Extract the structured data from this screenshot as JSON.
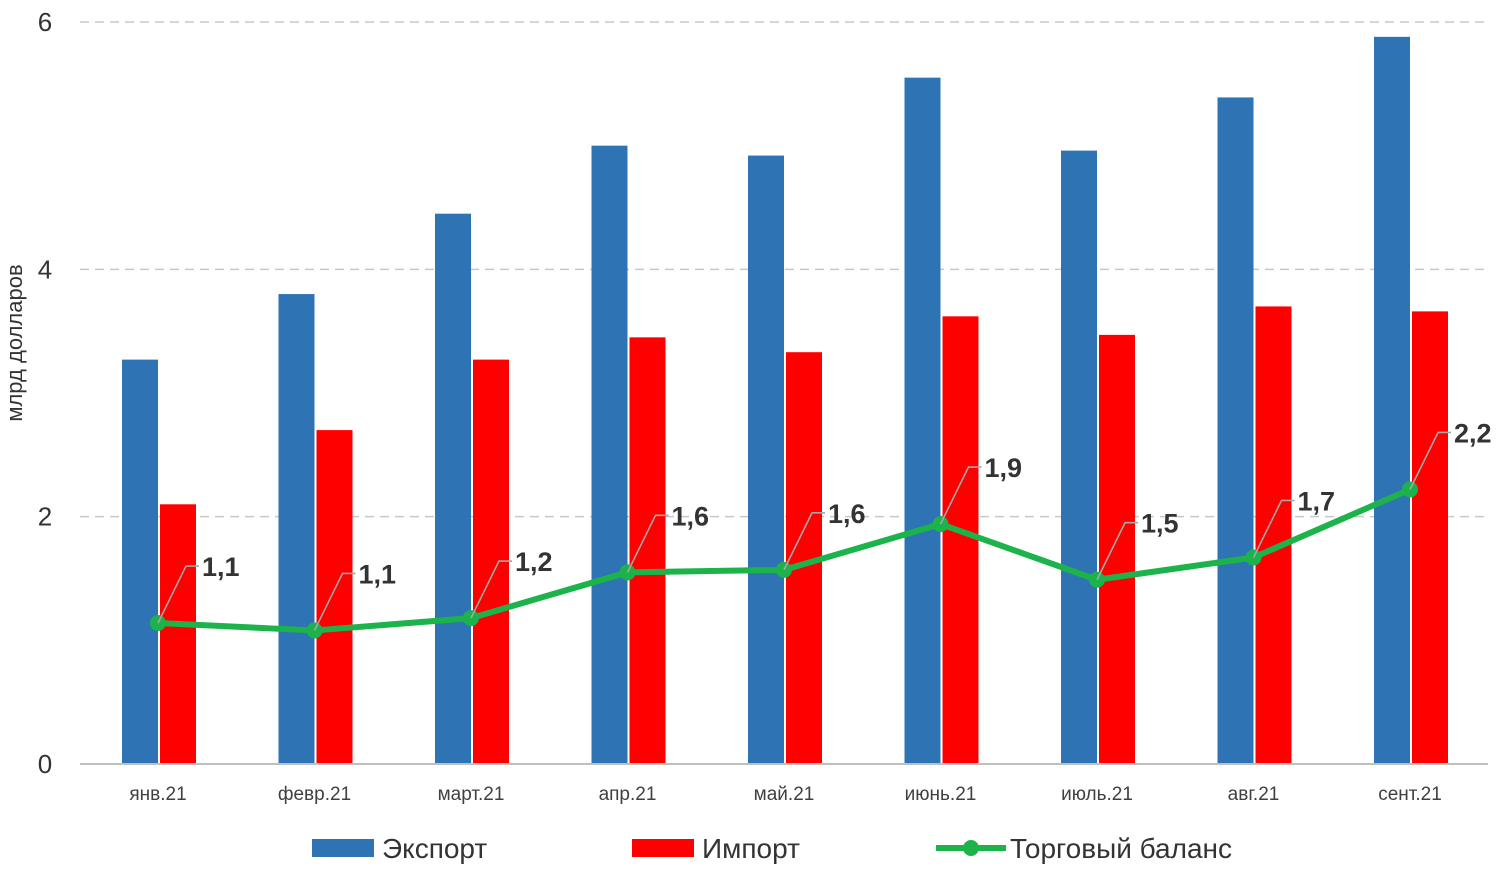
{
  "chart_data": {
    "type": "bar",
    "title": "",
    "xlabel": "",
    "ylabel": "млрд долларов",
    "ylim": [
      0,
      6
    ],
    "yticks": [
      0,
      2,
      4,
      6
    ],
    "ytick_labels": [
      "0",
      "2",
      "4",
      "6"
    ],
    "grid": true,
    "legend_position": "bottom",
    "categories": [
      "янв.21",
      "февр.21",
      "март.21",
      "апр.21",
      "май.21",
      "июнь.21",
      "июль.21",
      "авг.21",
      "сент.21"
    ],
    "series": [
      {
        "name": "Экспорт",
        "type": "bar",
        "color": "#2E74B5",
        "values": [
          3.27,
          3.8,
          4.45,
          5.0,
          4.92,
          5.55,
          4.96,
          5.39,
          5.88
        ]
      },
      {
        "name": "Импорт",
        "type": "bar",
        "color": "#FF0000",
        "values": [
          2.1,
          2.7,
          3.27,
          3.45,
          3.33,
          3.62,
          3.47,
          3.7,
          3.66
        ]
      },
      {
        "name": "Торговый баланс",
        "type": "line",
        "color": "#1DB34B",
        "values": [
          1.14,
          1.08,
          1.18,
          1.55,
          1.57,
          1.94,
          1.49,
          1.67,
          2.22
        ],
        "data_labels": [
          "1,1",
          "1,1",
          "1,2",
          "1,6",
          "1,6",
          "1,9",
          "1,5",
          "1,7",
          "2,2"
        ]
      }
    ]
  }
}
